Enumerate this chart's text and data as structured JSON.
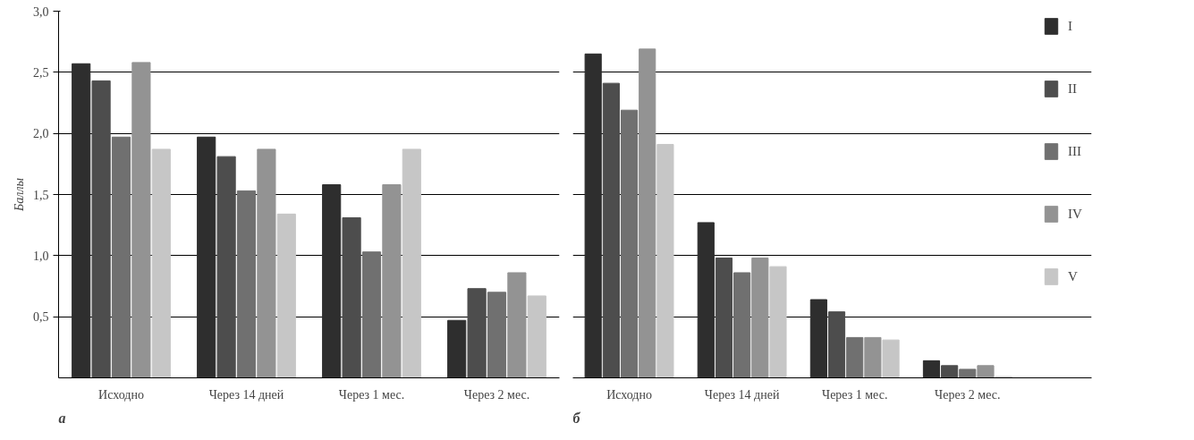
{
  "chart_data": [
    {
      "type": "bar",
      "ylabel": "Баллы",
      "categories": [
        "Исходно",
        "Через 14 дней",
        "Через 1 мес.",
        "Через 2 мес."
      ],
      "series": [
        {
          "color": "#2e2e2e",
          "values": [
            2.57,
            1.97,
            1.58,
            0.47
          ]
        },
        {
          "color": "#4d4d4d",
          "values": [
            2.43,
            1.81,
            1.31,
            0.73
          ]
        },
        {
          "color": "#707070",
          "values": [
            1.97,
            1.53,
            1.03,
            0.7
          ]
        },
        {
          "color": "#939393",
          "values": [
            2.58,
            1.87,
            1.58,
            0.86
          ]
        },
        {
          "color": "#c6c6c6",
          "values": [
            1.87,
            1.34,
            1.87,
            0.67
          ]
        }
      ],
      "ylim": [
        0,
        3.0
      ],
      "yticks": [
        {
          "value": 0.5,
          "label": "0,5"
        },
        {
          "value": 1.0,
          "label": "1,0"
        },
        {
          "value": 1.5,
          "label": "1,5"
        },
        {
          "value": 2.0,
          "label": "2,0"
        },
        {
          "value": 2.5,
          "label": "2,5"
        },
        {
          "value": 3.0,
          "label": "3,0"
        }
      ],
      "grid": "y",
      "annotations": [
        "а"
      ]
    },
    {
      "type": "bar",
      "categories": [
        "Исходно",
        "Через 14 дней",
        "Через 1 мес.",
        "Через 2 мес."
      ],
      "series": [
        {
          "name": "I",
          "color": "#2e2e2e",
          "values": [
            2.65,
            1.27,
            0.64,
            0.14
          ]
        },
        {
          "name": "II",
          "color": "#4d4d4d",
          "values": [
            2.41,
            0.98,
            0.54,
            0.1
          ]
        },
        {
          "name": "III",
          "color": "#707070",
          "values": [
            2.19,
            0.86,
            0.33,
            0.07
          ]
        },
        {
          "name": "IV",
          "color": "#939393",
          "values": [
            2.69,
            0.98,
            0.33,
            0.1
          ]
        },
        {
          "name": "V",
          "color": "#c6c6c6",
          "values": [
            1.91,
            0.91,
            0.31,
            0.01
          ]
        }
      ],
      "ylim": [
        0,
        3.0
      ],
      "yticks": [
        0.5,
        1.0,
        1.5,
        2.0,
        2.5,
        3.0
      ],
      "grid": "y",
      "tick_labels": "x",
      "legend": "right",
      "annotations": [
        "б"
      ]
    }
  ]
}
